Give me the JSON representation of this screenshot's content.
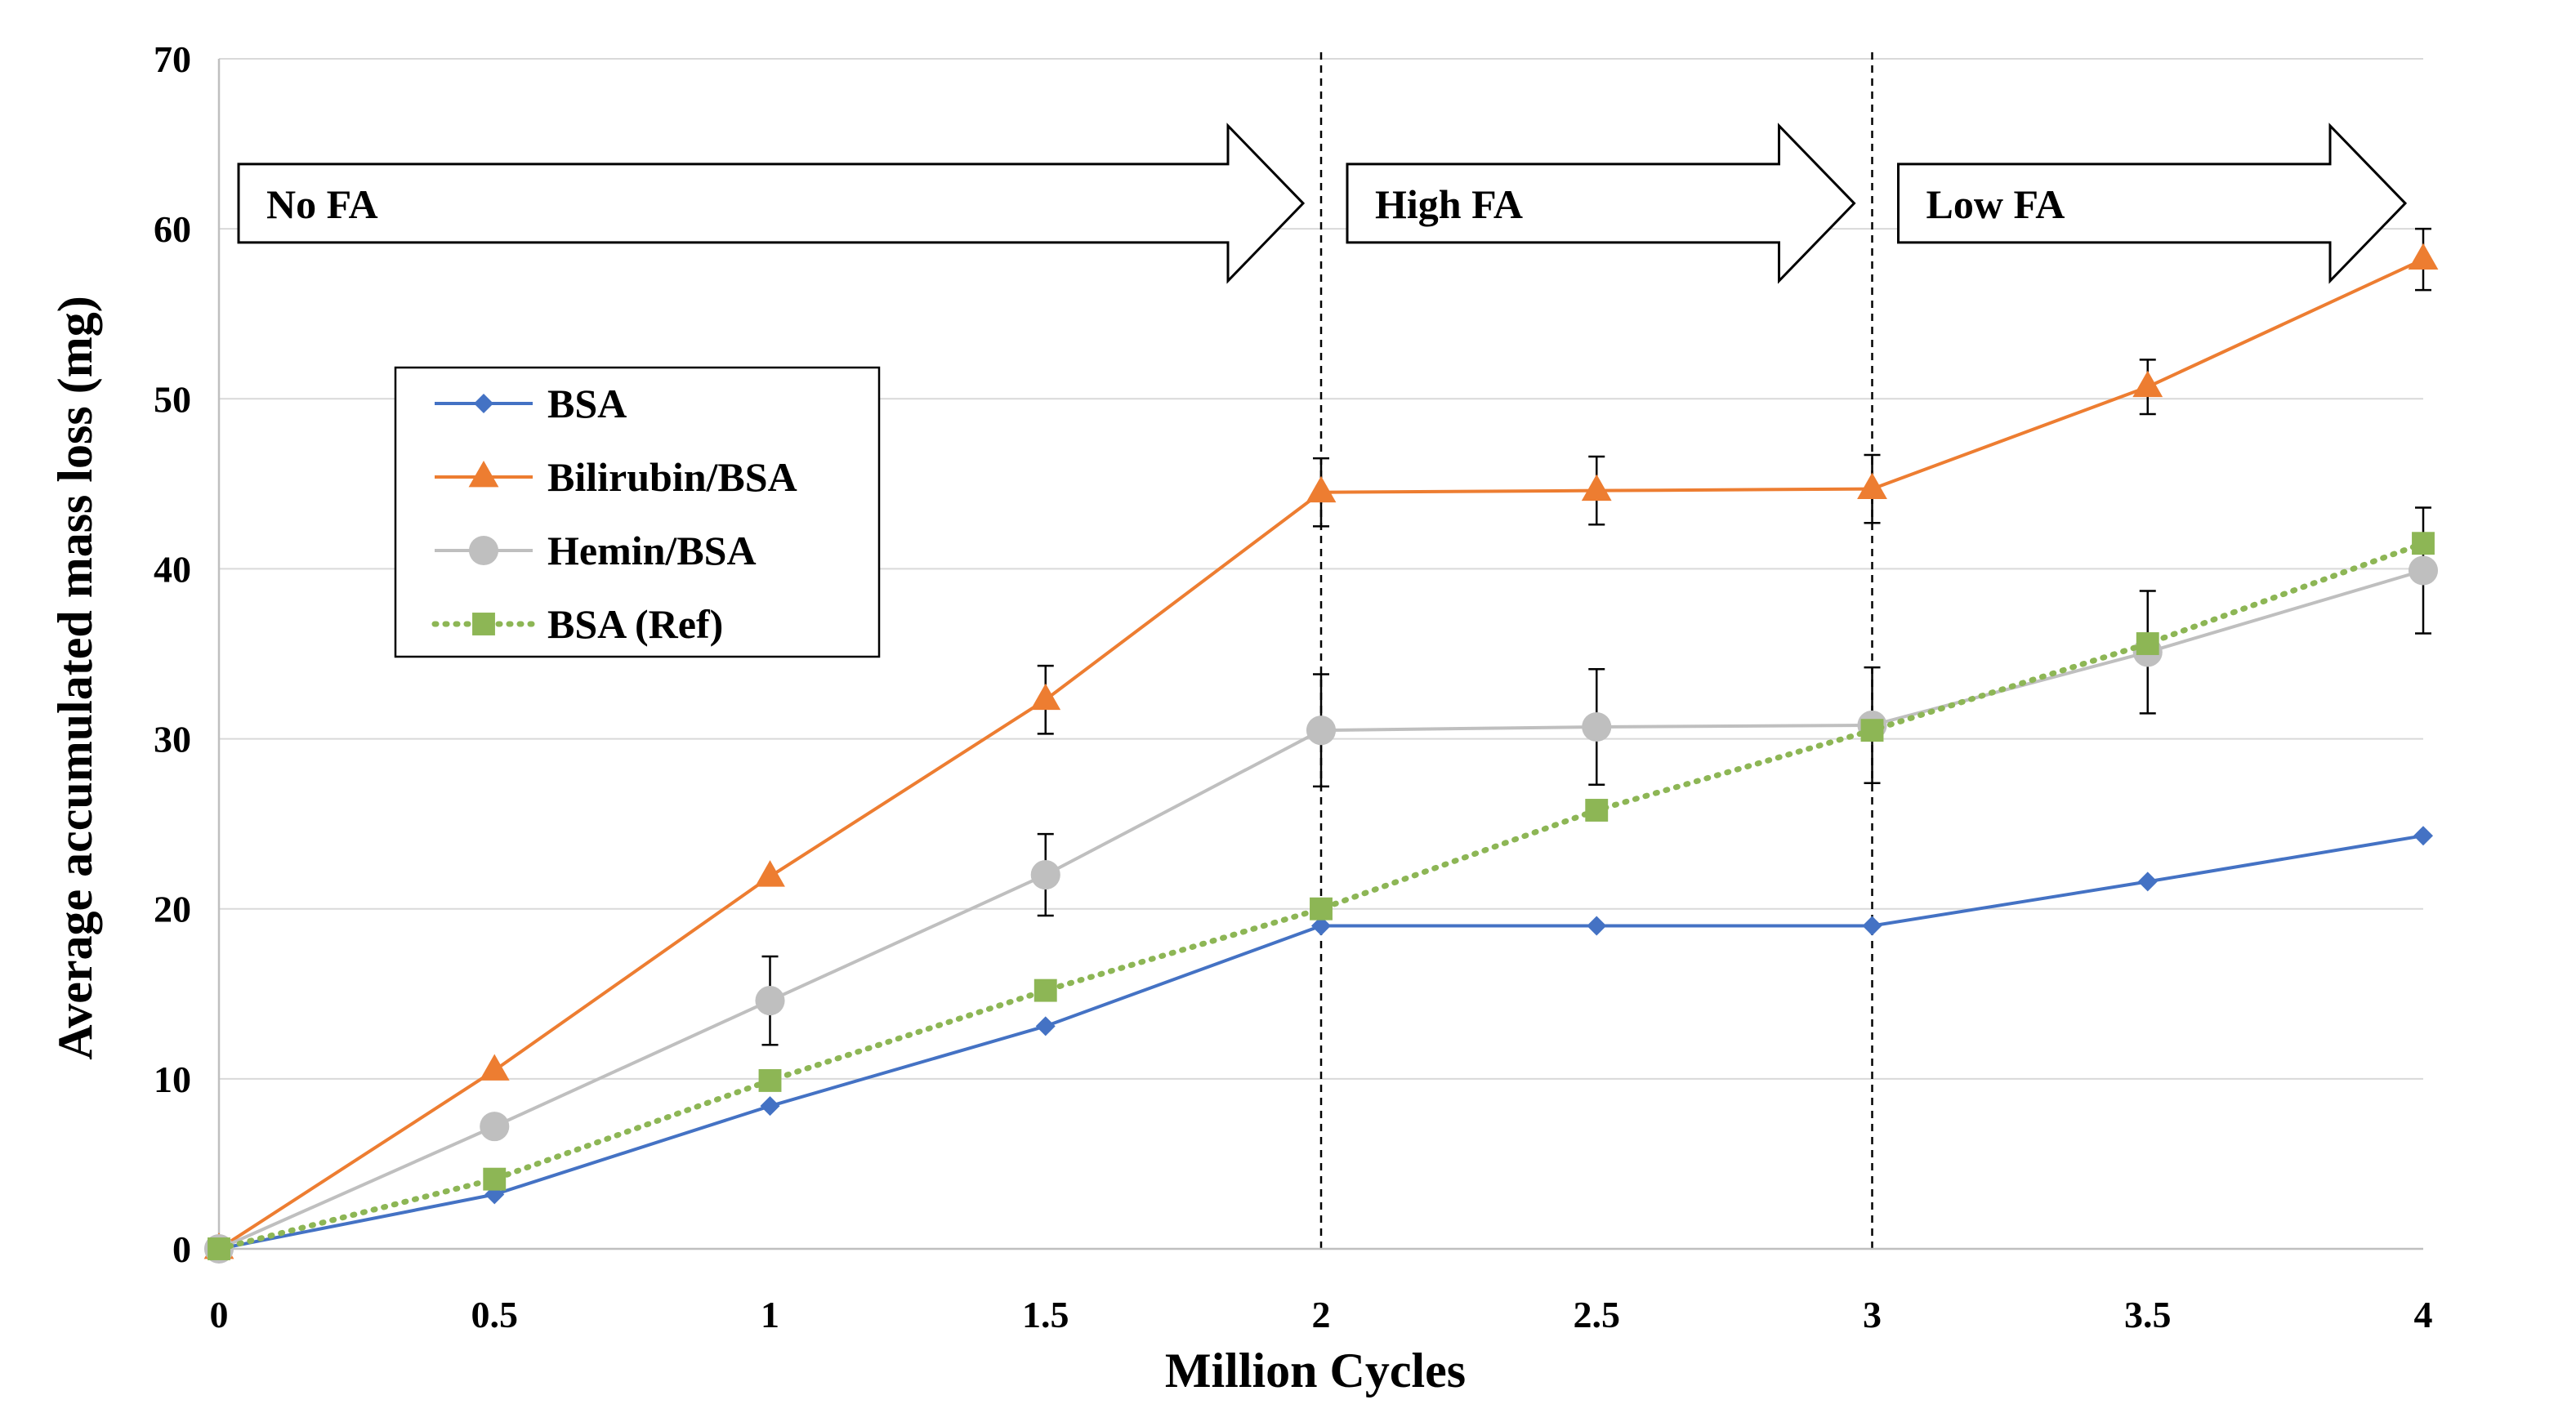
{
  "chart_data": {
    "type": "line",
    "xlabel": "Million Cycles",
    "ylabel": "Average accumulated mass loss (mg)",
    "xlim": [
      0,
      4
    ],
    "ylim": [
      0,
      70
    ],
    "x_ticks": [
      "0",
      "0.5",
      "1",
      "1.5",
      "2",
      "2.5",
      "3",
      "3.5",
      "4"
    ],
    "y_ticks": [
      "0",
      "10",
      "20",
      "30",
      "40",
      "50",
      "60",
      "70"
    ],
    "grid": "horizontal",
    "legend_position": "upper-left",
    "phases": [
      {
        "label": "No FA",
        "x_start": 0,
        "x_end": 2
      },
      {
        "label": "High FA",
        "x_start": 2,
        "x_end": 3
      },
      {
        "label": "Low FA",
        "x_start": 3,
        "x_end": 4
      }
    ],
    "phase_boundaries": [
      2,
      3
    ],
    "series": [
      {
        "name": "BSA",
        "color": "#4472C4",
        "marker": "diamond",
        "line_style": "solid",
        "x": [
          0,
          0.5,
          1,
          1.5,
          2,
          2.5,
          3,
          3.5,
          4
        ],
        "values": [
          0,
          3.2,
          8.4,
          13.1,
          19.0,
          19.0,
          19.0,
          21.6,
          24.3
        ],
        "error": [
          0,
          0,
          0,
          0,
          0,
          0,
          0,
          0,
          0
        ]
      },
      {
        "name": "Bilirubin/BSA",
        "color": "#ED7D31",
        "marker": "triangle",
        "line_style": "solid",
        "x": [
          0,
          0.5,
          1,
          1.5,
          2,
          2.5,
          3,
          3.5,
          4
        ],
        "values": [
          0,
          10.5,
          21.9,
          32.3,
          44.5,
          44.6,
          44.7,
          50.7,
          58.2
        ],
        "error": [
          0,
          0,
          0,
          2.0,
          2.0,
          2.0,
          2.0,
          1.6,
          1.8
        ]
      },
      {
        "name": "Hemin/BSA",
        "color": "#BFBFBF",
        "marker": "circle",
        "line_style": "solid",
        "x": [
          0,
          0.5,
          1,
          1.5,
          2,
          2.5,
          3,
          3.5,
          4
        ],
        "values": [
          0,
          7.2,
          14.6,
          22.0,
          30.5,
          30.7,
          30.8,
          35.1,
          39.9
        ],
        "error": [
          0,
          0,
          2.6,
          2.4,
          3.3,
          3.4,
          3.4,
          3.6,
          3.7
        ]
      },
      {
        "name": "BSA (Ref)",
        "color": "#8DB655",
        "marker": "square",
        "line_style": "dotted",
        "x": [
          0,
          0.5,
          1,
          1.5,
          2,
          2.5,
          3,
          3.5,
          4
        ],
        "values": [
          0,
          4.1,
          9.9,
          15.2,
          20.0,
          25.8,
          30.5,
          35.6,
          41.5
        ],
        "error": [
          0,
          0,
          0,
          0,
          0,
          0,
          0,
          0,
          0
        ]
      }
    ]
  }
}
